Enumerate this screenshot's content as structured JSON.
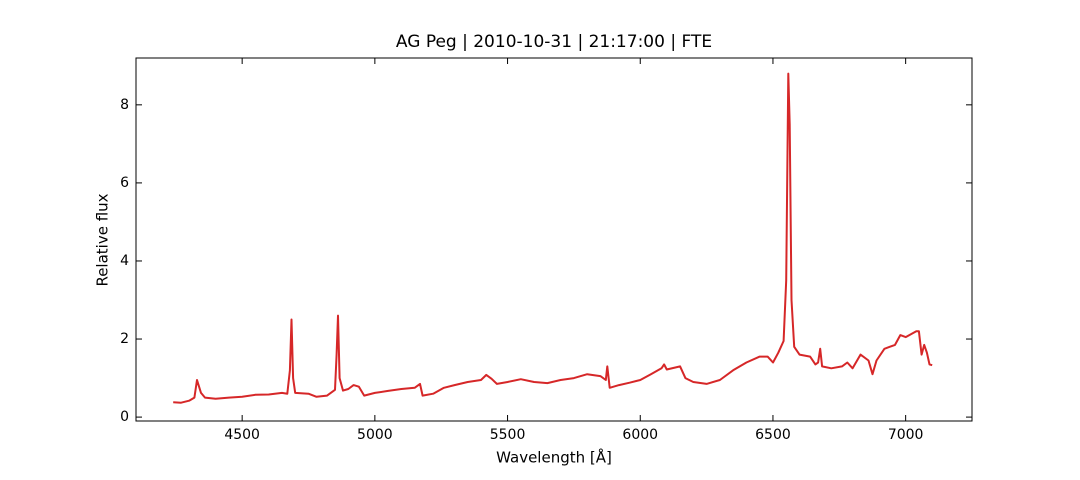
{
  "chart_data": {
    "type": "line",
    "title": "AG Peg | 2010-10-31 | 21:17:00 | FTE",
    "x_label": "Wavelength [Å]",
    "y_label": "Relative flux",
    "xlim": [
      4100,
      7250
    ],
    "ylim": [
      -0.1,
      9.2
    ],
    "xticks": [
      4500,
      5000,
      5500,
      6000,
      6500,
      7000
    ],
    "yticks": [
      0,
      2,
      4,
      6,
      8
    ],
    "grid": false,
    "x": [
      4240,
      4270,
      4300,
      4320,
      4330,
      4345,
      4360,
      4400,
      4450,
      4500,
      4550,
      4600,
      4650,
      4670,
      4680,
      4686,
      4692,
      4700,
      4750,
      4780,
      4820,
      4850,
      4856,
      4861,
      4867,
      4880,
      4900,
      4920,
      4940,
      4960,
      5000,
      5050,
      5100,
      5150,
      5170,
      5180,
      5220,
      5260,
      5300,
      5350,
      5400,
      5420,
      5440,
      5460,
      5500,
      5550,
      5600,
      5650,
      5700,
      5750,
      5800,
      5850,
      5870,
      5876,
      5885,
      5920,
      5960,
      6000,
      6040,
      6080,
      6090,
      6100,
      6150,
      6170,
      6200,
      6250,
      6300,
      6350,
      6400,
      6450,
      6480,
      6500,
      6520,
      6540,
      6550,
      6558,
      6563,
      6570,
      6580,
      6600,
      6640,
      6660,
      6670,
      6678,
      6685,
      6720,
      6760,
      6780,
      6800,
      6830,
      6860,
      6875,
      6890,
      6920,
      6960,
      6980,
      7000,
      7040,
      7050,
      7060,
      7070,
      7080,
      7090,
      7100
    ],
    "series": [
      {
        "name": "flux",
        "color": "#d62728",
        "values": [
          0.38,
          0.37,
          0.42,
          0.5,
          0.95,
          0.62,
          0.5,
          0.47,
          0.5,
          0.52,
          0.57,
          0.58,
          0.62,
          0.6,
          1.2,
          2.5,
          1.0,
          0.62,
          0.6,
          0.52,
          0.55,
          0.7,
          1.6,
          2.6,
          1.0,
          0.68,
          0.72,
          0.82,
          0.78,
          0.55,
          0.62,
          0.67,
          0.72,
          0.75,
          0.85,
          0.55,
          0.6,
          0.75,
          0.82,
          0.9,
          0.95,
          1.08,
          0.98,
          0.85,
          0.9,
          0.97,
          0.9,
          0.87,
          0.95,
          1.0,
          1.1,
          1.05,
          0.95,
          1.3,
          0.75,
          0.82,
          0.88,
          0.95,
          1.1,
          1.25,
          1.35,
          1.22,
          1.3,
          1.0,
          0.9,
          0.85,
          0.95,
          1.2,
          1.4,
          1.55,
          1.55,
          1.4,
          1.65,
          1.95,
          3.5,
          8.8,
          7.5,
          3.0,
          1.8,
          1.6,
          1.55,
          1.35,
          1.4,
          1.75,
          1.3,
          1.25,
          1.3,
          1.4,
          1.25,
          1.6,
          1.45,
          1.1,
          1.45,
          1.75,
          1.85,
          2.1,
          2.05,
          2.2,
          2.2,
          1.6,
          1.85,
          1.65,
          1.35,
          1.33
        ]
      }
    ]
  }
}
